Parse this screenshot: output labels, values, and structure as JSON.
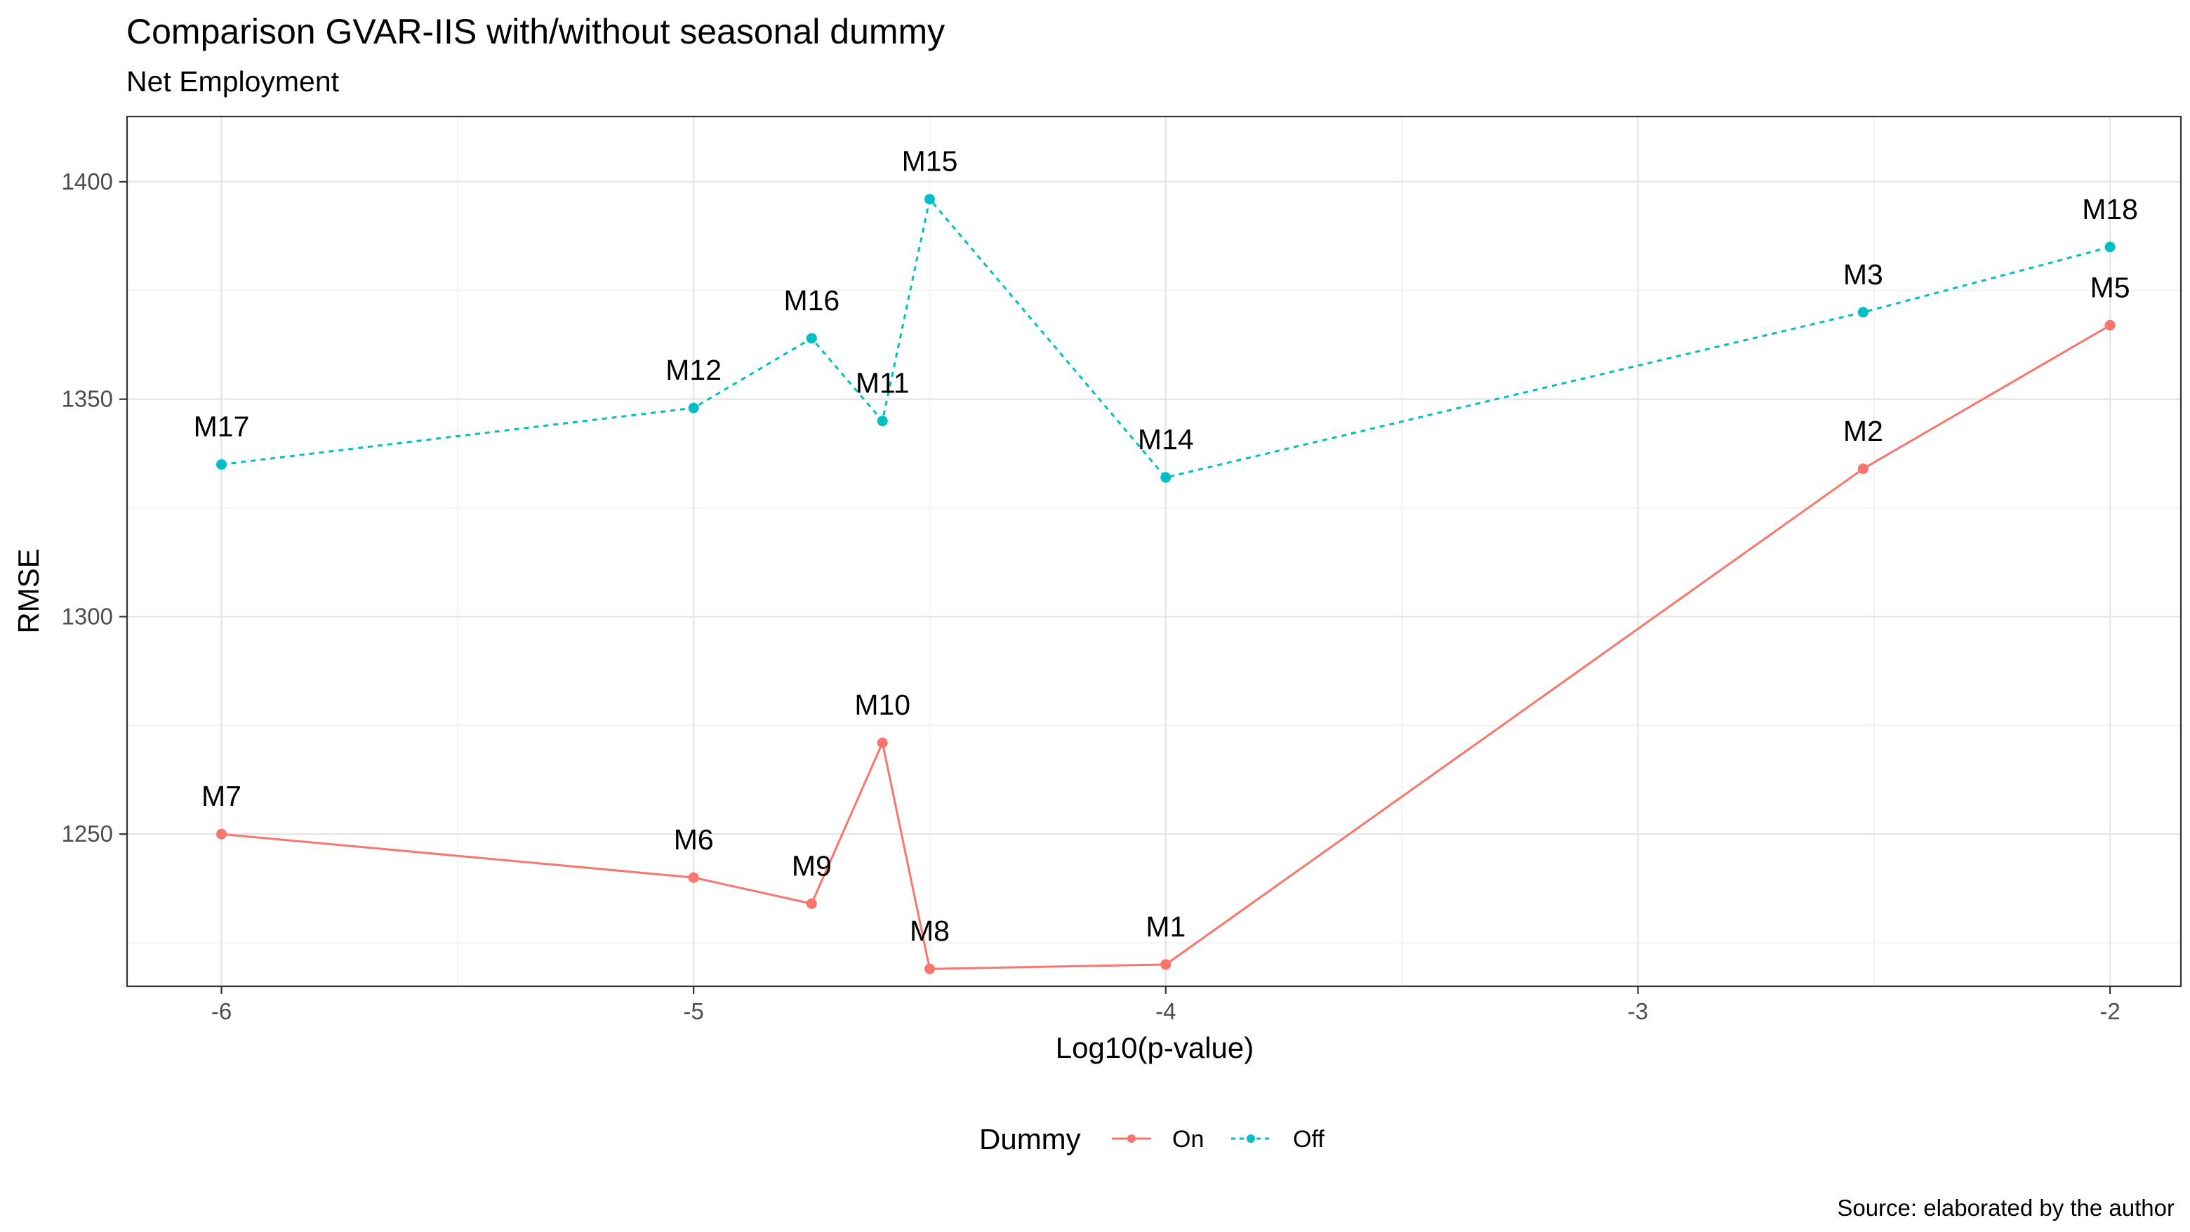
{
  "chart_data": {
    "type": "line",
    "title": "Comparison GVAR-IIS with/without seasonal dummy",
    "subtitle": "Net Employment",
    "xlabel": "Log10(p-value)",
    "ylabel": "RMSE",
    "caption": "Source: elaborated by the author",
    "xlim": [
      -6.2,
      -1.85
    ],
    "ylim": [
      1215,
      1415
    ],
    "x_ticks": [
      -6,
      -5,
      -4,
      -3,
      -2
    ],
    "x_tick_labels": [
      "-6",
      "-5",
      "-4",
      "-3",
      "-2"
    ],
    "y_ticks": [
      1250,
      1300,
      1350,
      1400
    ],
    "y_tick_labels": [
      "1250",
      "1300",
      "1350",
      "1400"
    ],
    "grid": true,
    "legend": {
      "title": "Dummy",
      "position": "bottom",
      "entries": [
        "On",
        "Off"
      ]
    },
    "series": [
      {
        "name": "On",
        "color": "#F8766D",
        "line_style": "solid",
        "points": [
          {
            "label": "M7",
            "x": -6.0,
            "y": 1250
          },
          {
            "label": "M6",
            "x": -5.0,
            "y": 1240
          },
          {
            "label": "M9",
            "x": -4.75,
            "y": 1234
          },
          {
            "label": "M10",
            "x": -4.6,
            "y": 1271
          },
          {
            "label": "M8",
            "x": -4.5,
            "y": 1219
          },
          {
            "label": "M1",
            "x": -4.0,
            "y": 1220
          },
          {
            "label": "M2",
            "x": -2.523,
            "y": 1334
          },
          {
            "label": "M5",
            "x": -2.0,
            "y": 1367
          }
        ]
      },
      {
        "name": "Off",
        "color": "#00BFC4",
        "line_style": "dashed",
        "points": [
          {
            "label": "M17",
            "x": -6.0,
            "y": 1335
          },
          {
            "label": "M12",
            "x": -5.0,
            "y": 1348
          },
          {
            "label": "M16",
            "x": -4.75,
            "y": 1364
          },
          {
            "label": "M11",
            "x": -4.6,
            "y": 1345
          },
          {
            "label": "M15",
            "x": -4.5,
            "y": 1396
          },
          {
            "label": "M14",
            "x": -4.0,
            "y": 1332
          },
          {
            "label": "M3",
            "x": -2.523,
            "y": 1370
          },
          {
            "label": "M18",
            "x": -2.0,
            "y": 1385
          }
        ]
      }
    ]
  }
}
